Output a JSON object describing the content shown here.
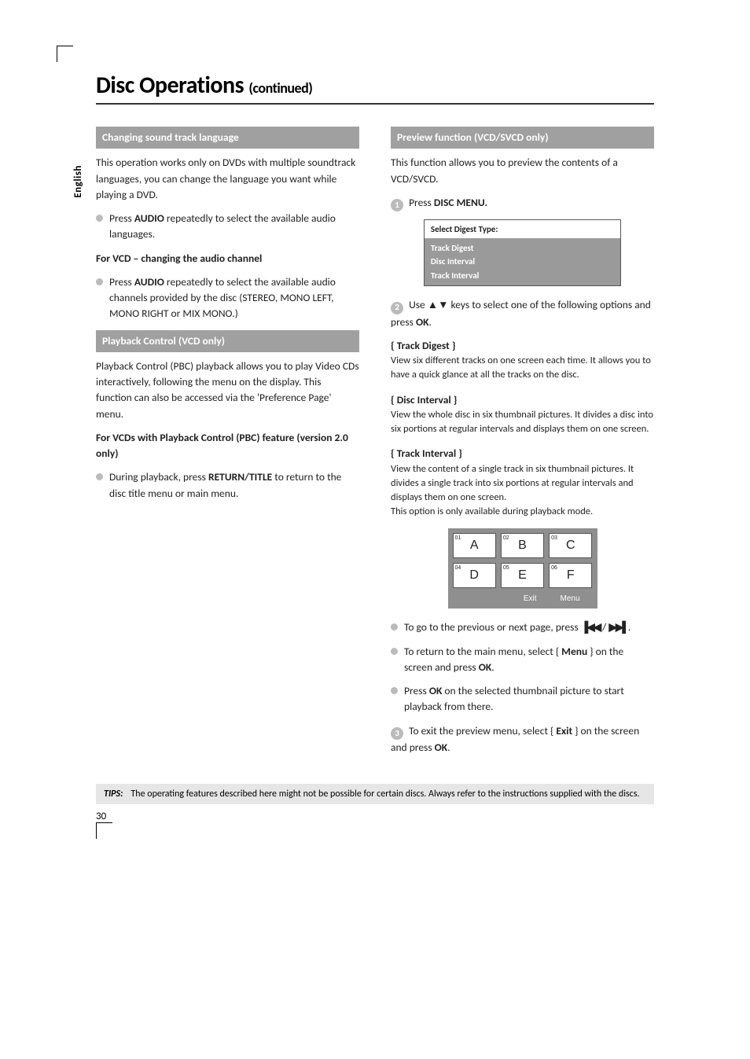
{
  "side_tab": "English",
  "title_main": "Disc Operations ",
  "title_cont": "(continued)",
  "left": {
    "sec1_bar": "Changing sound track language",
    "sec1_para": "This operation works only on DVDs with multiple soundtrack languages, you can change the language you want while playing a DVD.",
    "sec1_bullet1_a": "Press ",
    "sec1_bullet1_b": "AUDIO",
    "sec1_bullet1_c": " repeatedly to select the available audio languages.",
    "sec1_sub": "For VCD – changing the audio channel",
    "sec1_bullet2_a": "Press ",
    "sec1_bullet2_b": "AUDIO",
    "sec1_bullet2_c": " repeatedly to select the available audio channels provided by the disc (STEREO, MONO LEFT, MONO RIGHT or MIX MONO.)",
    "sec2_bar": "Playback Control (VCD only)",
    "sec2_para": "Playback Control (PBC) playback allows you to play Video CDs interactively, following the menu on the display.  This function can also be accessed via the 'Preference Page' menu.",
    "sec2_sub": "For VCDs with Playback Control (PBC) feature (version 2.0 only)",
    "sec2_bullet_a": "During playback, press ",
    "sec2_bullet_b": "RETURN/TITLE",
    "sec2_bullet_c": " to return to the disc title menu or main menu."
  },
  "right": {
    "sec_bar": "Preview function (VCD/SVCD only)",
    "intro": "This function allows you to preview the contents of a VCD/SVCD.",
    "step1_a": "Press ",
    "step1_b": "DISC MENU.",
    "box_hdr": "Select Digest Type:",
    "box_line1": "Track Digest",
    "box_line2": "Disc Interval",
    "box_line3": "Track Interval",
    "step2_a": "Use ▲▼ keys to select one of the following options and press ",
    "step2_b": "OK",
    "step2_c": ".",
    "opt1_label": "{ Track Digest }",
    "opt1_desc": "View six different tracks on one screen each time.  It allows you to have a quick glance at all the tracks on the disc.",
    "opt2_label": "{ Disc Interval }",
    "opt2_desc": "View the whole disc in six thumbnail pictures.  It divides a disc into six portions at regular intervals and displays them on one screen.",
    "opt3_label": "{ Track Interval }",
    "opt3_desc": "View the content of a single track in six thumbnail pictures.  It divides a single track into six portions at regular intervals and displays them on one screen.",
    "opt3_note": "This option is only available during playback mode.",
    "thumbs": {
      "cells": [
        {
          "idx": "01",
          "l": "A"
        },
        {
          "idx": "02",
          "l": "B"
        },
        {
          "idx": "03",
          "l": "C"
        },
        {
          "idx": "04",
          "l": "D"
        },
        {
          "idx": "05",
          "l": "E"
        },
        {
          "idx": "06",
          "l": "F"
        }
      ],
      "foot_exit": "Exit",
      "foot_menu": "Menu"
    },
    "b1_a": "To go to the previous or next page, press ",
    "b1_nav_prev": "▐◀◀",
    "b1_nav_sep": " / ",
    "b1_nav_next": "▶▶▌",
    "b1_end": ".",
    "b2_a": "To return to the main menu, select { ",
    "b2_b": "Menu",
    "b2_c": " } on the screen and press ",
    "b2_d": "OK",
    "b2_e": ".",
    "b3_a": "Press ",
    "b3_b": "OK",
    "b3_c": " on the selected thumbnail picture to start playback from there.",
    "step3_a": "To exit the preview menu, select { ",
    "step3_b": "Exit",
    "step3_c": " } on the screen and press ",
    "step3_d": "OK",
    "step3_e": "."
  },
  "tips_label": "TIPS:",
  "tips_text": "The operating features described here might not be possible for certain discs. Always refer to the instructions supplied with the discs.",
  "page_number": "30"
}
